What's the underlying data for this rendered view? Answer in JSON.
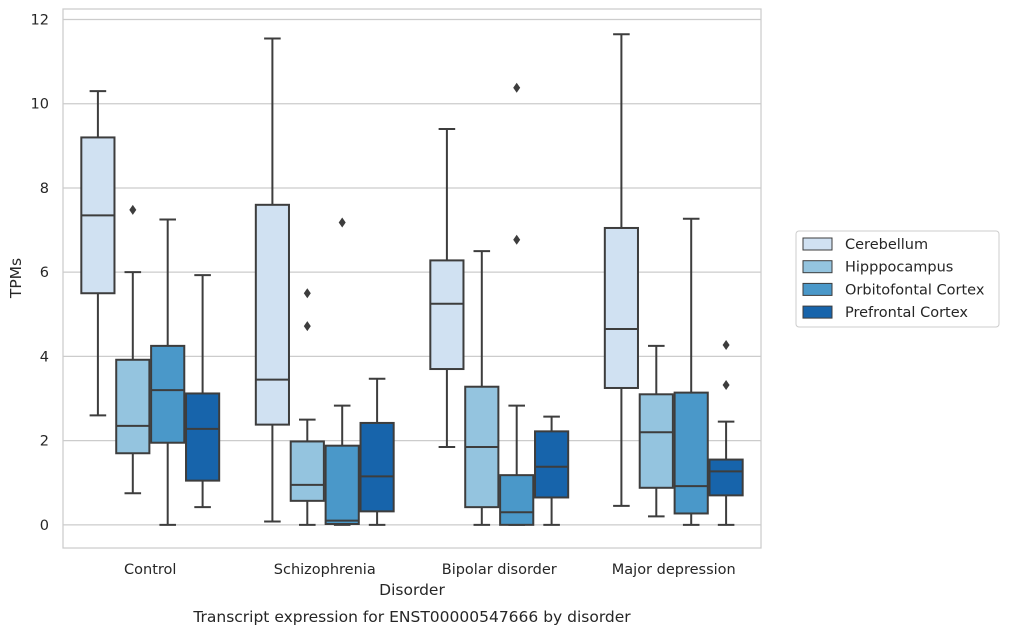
{
  "chart_data": {
    "type": "boxplot",
    "xlabel": "Disorder",
    "ylabel": "TPMs",
    "caption": "Transcript expression for ENST00000547666 by disorder",
    "categories": [
      "Control",
      "Schizophrenia",
      "Bipolar disorder",
      "Major depression"
    ],
    "ylim": [
      -0.55,
      12.25
    ],
    "yticks": [
      "0",
      "2",
      "4",
      "6",
      "8",
      "10",
      "12"
    ],
    "grid": true,
    "legend_position": "right",
    "series": [
      {
        "name": "Cerebellum",
        "color": "#d0e1f2",
        "boxes": [
          {
            "whisker_low": 2.6,
            "q1": 5.5,
            "median": 7.35,
            "q3": 9.2,
            "whisker_high": 10.3,
            "outliers": []
          },
          {
            "whisker_low": 0.08,
            "q1": 2.38,
            "median": 3.45,
            "q3": 7.6,
            "whisker_high": 11.55,
            "outliers": []
          },
          {
            "whisker_low": 1.85,
            "q1": 3.7,
            "median": 5.25,
            "q3": 6.28,
            "whisker_high": 9.4,
            "outliers": []
          },
          {
            "whisker_low": 0.45,
            "q1": 3.25,
            "median": 4.65,
            "q3": 7.05,
            "whisker_high": 11.65,
            "outliers": []
          }
        ]
      },
      {
        "name": "Hipppocampus",
        "color": "#94c4df",
        "boxes": [
          {
            "whisker_low": 0.75,
            "q1": 1.7,
            "median": 2.35,
            "q3": 3.92,
            "whisker_high": 6.0,
            "outliers": [
              7.48
            ]
          },
          {
            "whisker_low": 0.0,
            "q1": 0.57,
            "median": 0.95,
            "q3": 1.98,
            "whisker_high": 2.5,
            "outliers": [
              5.5,
              4.72
            ]
          },
          {
            "whisker_low": 0.0,
            "q1": 0.42,
            "median": 1.85,
            "q3": 3.28,
            "whisker_high": 6.5,
            "outliers": []
          },
          {
            "whisker_low": 0.2,
            "q1": 0.88,
            "median": 2.2,
            "q3": 3.1,
            "whisker_high": 4.25,
            "outliers": []
          }
        ]
      },
      {
        "name": "Orbitofontal Cortex",
        "color": "#4a98c9",
        "boxes": [
          {
            "whisker_low": 0.0,
            "q1": 1.95,
            "median": 3.2,
            "q3": 4.25,
            "whisker_high": 7.25,
            "outliers": []
          },
          {
            "whisker_low": 0.0,
            "q1": 0.02,
            "median": 0.1,
            "q3": 1.88,
            "whisker_high": 2.83,
            "outliers": [
              7.18
            ]
          },
          {
            "whisker_low": 0.0,
            "q1": 0.0,
            "median": 0.3,
            "q3": 1.18,
            "whisker_high": 2.83,
            "outliers": [
              6.77,
              10.38
            ]
          },
          {
            "whisker_low": 0.0,
            "q1": 0.27,
            "median": 0.92,
            "q3": 3.14,
            "whisker_high": 7.27,
            "outliers": []
          }
        ]
      },
      {
        "name": "Prefrontal Cortex",
        "color": "#1764ab",
        "boxes": [
          {
            "whisker_low": 0.42,
            "q1": 1.05,
            "median": 2.28,
            "q3": 3.12,
            "whisker_high": 5.93,
            "outliers": []
          },
          {
            "whisker_low": 0.0,
            "q1": 0.32,
            "median": 1.15,
            "q3": 2.42,
            "whisker_high": 3.47,
            "outliers": []
          },
          {
            "whisker_low": 0.0,
            "q1": 0.65,
            "median": 1.38,
            "q3": 2.22,
            "whisker_high": 2.57,
            "outliers": []
          },
          {
            "whisker_low": 0.0,
            "q1": 0.7,
            "median": 1.27,
            "q3": 1.55,
            "whisker_high": 2.45,
            "outliers": [
              4.27,
              3.32
            ]
          }
        ]
      }
    ]
  }
}
